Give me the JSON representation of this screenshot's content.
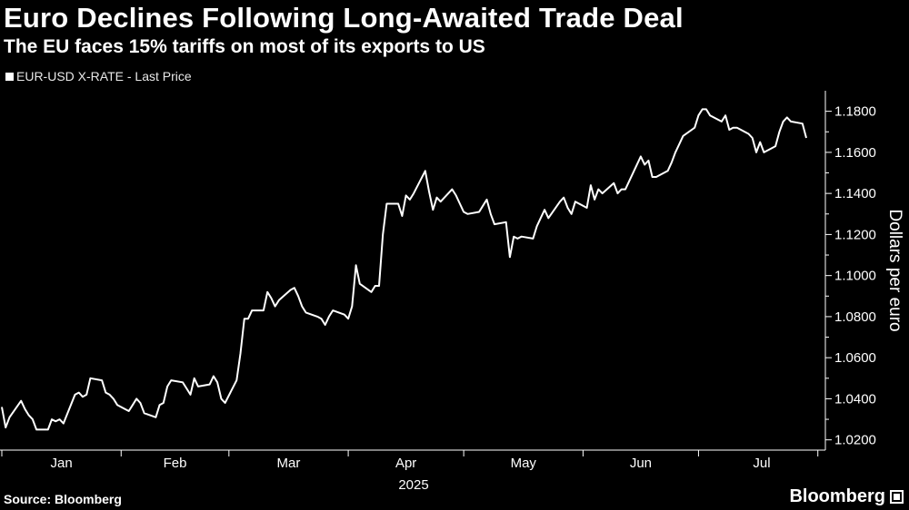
{
  "title": "Euro Declines Following Long-Awaited Trade Deal",
  "subtitle": "The EU faces 15% tariffs on most of its exports to US",
  "legend_label": "EUR-USD X-RATE - Last Price",
  "source": "Source: Bloomberg",
  "brand": "Bloomberg",
  "colors": {
    "background": "#000000",
    "line": "#ffffff"
  },
  "chart_data": {
    "type": "line",
    "title": "Euro Declines Following Long-Awaited Trade Deal",
    "subtitle": "The EU faces 15% tariffs on most of its exports to US",
    "ylabel": "Dollars per euro",
    "xlabel": "",
    "year_label": "2025",
    "ylim": [
      1.015,
      1.19
    ],
    "x_range": [
      "2025-01-01",
      "2025-07-29"
    ],
    "y_ticks": [
      1.02,
      1.04,
      1.06,
      1.08,
      1.1,
      1.12,
      1.14,
      1.16,
      1.18
    ],
    "y_tick_labels": [
      "1.0200",
      "1.0400",
      "1.0600",
      "1.0800",
      "1.1000",
      "1.1200",
      "1.1400",
      "1.1600",
      "1.1800"
    ],
    "x_ticks": [
      "Jan",
      "Feb",
      "Mar",
      "Apr",
      "May",
      "Jun",
      "Jul"
    ],
    "legend_position": "top-left",
    "grid": false,
    "series": [
      {
        "name": "EUR-USD X-RATE - Last Price",
        "points": [
          [
            "2025-01-01",
            1.036
          ],
          [
            "2025-01-02",
            1.026
          ],
          [
            "2025-01-03",
            1.031
          ],
          [
            "2025-01-06",
            1.039
          ],
          [
            "2025-01-07",
            1.035
          ],
          [
            "2025-01-08",
            1.032
          ],
          [
            "2025-01-09",
            1.03
          ],
          [
            "2025-01-10",
            1.025
          ],
          [
            "2025-01-13",
            1.025
          ],
          [
            "2025-01-14",
            1.03
          ],
          [
            "2025-01-15",
            1.029
          ],
          [
            "2025-01-16",
            1.03
          ],
          [
            "2025-01-17",
            1.028
          ],
          [
            "2025-01-20",
            1.042
          ],
          [
            "2025-01-21",
            1.043
          ],
          [
            "2025-01-22",
            1.041
          ],
          [
            "2025-01-23",
            1.042
          ],
          [
            "2025-01-24",
            1.05
          ],
          [
            "2025-01-27",
            1.049
          ],
          [
            "2025-01-28",
            1.043
          ],
          [
            "2025-01-29",
            1.042
          ],
          [
            "2025-01-30",
            1.04
          ],
          [
            "2025-01-31",
            1.037
          ],
          [
            "2025-02-03",
            1.034
          ],
          [
            "2025-02-04",
            1.037
          ],
          [
            "2025-02-05",
            1.04
          ],
          [
            "2025-02-06",
            1.038
          ],
          [
            "2025-02-07",
            1.033
          ],
          [
            "2025-02-10",
            1.031
          ],
          [
            "2025-02-11",
            1.037
          ],
          [
            "2025-02-12",
            1.038
          ],
          [
            "2025-02-13",
            1.046
          ],
          [
            "2025-02-14",
            1.049
          ],
          [
            "2025-02-17",
            1.048
          ],
          [
            "2025-02-18",
            1.045
          ],
          [
            "2025-02-19",
            1.042
          ],
          [
            "2025-02-20",
            1.05
          ],
          [
            "2025-02-21",
            1.046
          ],
          [
            "2025-02-24",
            1.047
          ],
          [
            "2025-02-25",
            1.051
          ],
          [
            "2025-02-26",
            1.048
          ],
          [
            "2025-02-27",
            1.04
          ],
          [
            "2025-02-28",
            1.038
          ],
          [
            "2025-03-03",
            1.049
          ],
          [
            "2025-03-04",
            1.062
          ],
          [
            "2025-03-05",
            1.079
          ],
          [
            "2025-03-06",
            1.079
          ],
          [
            "2025-03-07",
            1.083
          ],
          [
            "2025-03-10",
            1.083
          ],
          [
            "2025-03-11",
            1.092
          ],
          [
            "2025-03-12",
            1.089
          ],
          [
            "2025-03-13",
            1.085
          ],
          [
            "2025-03-14",
            1.088
          ],
          [
            "2025-03-17",
            1.093
          ],
          [
            "2025-03-18",
            1.094
          ],
          [
            "2025-03-19",
            1.09
          ],
          [
            "2025-03-20",
            1.085
          ],
          [
            "2025-03-21",
            1.082
          ],
          [
            "2025-03-24",
            1.08
          ],
          [
            "2025-03-25",
            1.079
          ],
          [
            "2025-03-26",
            1.076
          ],
          [
            "2025-03-27",
            1.08
          ],
          [
            "2025-03-28",
            1.083
          ],
          [
            "2025-03-31",
            1.081
          ],
          [
            "2025-04-01",
            1.079
          ],
          [
            "2025-04-02",
            1.085
          ],
          [
            "2025-04-03",
            1.105
          ],
          [
            "2025-04-04",
            1.096
          ],
          [
            "2025-04-07",
            1.092
          ],
          [
            "2025-04-08",
            1.095
          ],
          [
            "2025-04-09",
            1.095
          ],
          [
            "2025-04-10",
            1.12
          ],
          [
            "2025-04-11",
            1.135
          ],
          [
            "2025-04-14",
            1.135
          ],
          [
            "2025-04-15",
            1.129
          ],
          [
            "2025-04-16",
            1.139
          ],
          [
            "2025-04-17",
            1.137
          ],
          [
            "2025-04-18",
            1.14
          ],
          [
            "2025-04-21",
            1.151
          ],
          [
            "2025-04-22",
            1.141
          ],
          [
            "2025-04-23",
            1.132
          ],
          [
            "2025-04-24",
            1.138
          ],
          [
            "2025-04-25",
            1.136
          ],
          [
            "2025-04-28",
            1.142
          ],
          [
            "2025-04-29",
            1.139
          ],
          [
            "2025-04-30",
            1.135
          ],
          [
            "2025-05-01",
            1.131
          ],
          [
            "2025-05-02",
            1.13
          ],
          [
            "2025-05-05",
            1.131
          ],
          [
            "2025-05-06",
            1.134
          ],
          [
            "2025-05-07",
            1.137
          ],
          [
            "2025-05-08",
            1.13
          ],
          [
            "2025-05-09",
            1.125
          ],
          [
            "2025-05-12",
            1.126
          ],
          [
            "2025-05-13",
            1.109
          ],
          [
            "2025-05-14",
            1.119
          ],
          [
            "2025-05-15",
            1.118
          ],
          [
            "2025-05-16",
            1.119
          ],
          [
            "2025-05-19",
            1.118
          ],
          [
            "2025-05-20",
            1.124
          ],
          [
            "2025-05-21",
            1.128
          ],
          [
            "2025-05-22",
            1.132
          ],
          [
            "2025-05-23",
            1.128
          ],
          [
            "2025-05-26",
            1.136
          ],
          [
            "2025-05-27",
            1.138
          ],
          [
            "2025-05-28",
            1.133
          ],
          [
            "2025-05-29",
            1.13
          ],
          [
            "2025-05-30",
            1.136
          ],
          [
            "2025-06-02",
            1.133
          ],
          [
            "2025-06-03",
            1.144
          ],
          [
            "2025-06-04",
            1.137
          ],
          [
            "2025-06-05",
            1.142
          ],
          [
            "2025-06-06",
            1.14
          ],
          [
            "2025-06-09",
            1.145
          ],
          [
            "2025-06-10",
            1.14
          ],
          [
            "2025-06-11",
            1.142
          ],
          [
            "2025-06-12",
            1.142
          ],
          [
            "2025-06-13",
            1.146
          ],
          [
            "2025-06-16",
            1.158
          ],
          [
            "2025-06-17",
            1.154
          ],
          [
            "2025-06-18",
            1.156
          ],
          [
            "2025-06-19",
            1.148
          ],
          [
            "2025-06-20",
            1.148
          ],
          [
            "2025-06-23",
            1.151
          ],
          [
            "2025-06-24",
            1.155
          ],
          [
            "2025-06-25",
            1.16
          ],
          [
            "2025-06-26",
            1.164
          ],
          [
            "2025-06-27",
            1.168
          ],
          [
            "2025-06-30",
            1.172
          ],
          [
            "2025-07-01",
            1.178
          ],
          [
            "2025-07-02",
            1.181
          ],
          [
            "2025-07-03",
            1.181
          ],
          [
            "2025-07-04",
            1.178
          ],
          [
            "2025-07-07",
            1.175
          ],
          [
            "2025-07-08",
            1.178
          ],
          [
            "2025-07-09",
            1.171
          ],
          [
            "2025-07-10",
            1.172
          ],
          [
            "2025-07-11",
            1.172
          ],
          [
            "2025-07-14",
            1.169
          ],
          [
            "2025-07-15",
            1.167
          ],
          [
            "2025-07-16",
            1.16
          ],
          [
            "2025-07-17",
            1.165
          ],
          [
            "2025-07-18",
            1.16
          ],
          [
            "2025-07-21",
            1.163
          ],
          [
            "2025-07-22",
            1.17
          ],
          [
            "2025-07-23",
            1.175
          ],
          [
            "2025-07-24",
            1.177
          ],
          [
            "2025-07-25",
            1.175
          ],
          [
            "2025-07-28",
            1.174
          ],
          [
            "2025-07-29",
            1.167
          ]
        ]
      }
    ]
  }
}
